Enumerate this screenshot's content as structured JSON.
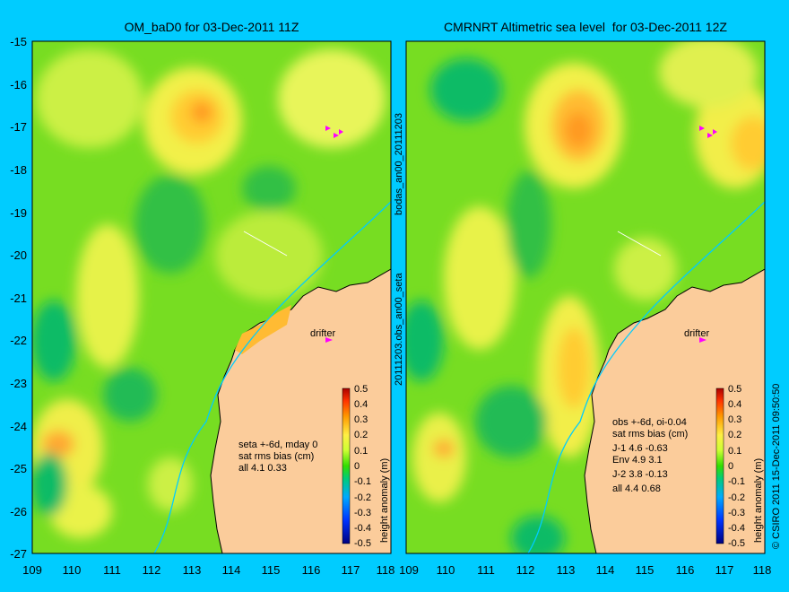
{
  "colors": {
    "background": "#00ccff",
    "land": "#fbcc9b",
    "drifter": "#ff00ff"
  },
  "left_panel": {
    "title": "OM_baD0 for 03-Dec-2011 11Z",
    "info_lines": [
      "seta +-6d, mday 0",
      "sat rms bias (cm)",
      "all 4.1 0.33"
    ],
    "drifter_label": "drifter"
  },
  "right_panel": {
    "title": "CMRNRT Altimetric sea level  for 03-Dec-2011 12Z",
    "info_lines": [
      "obs +-6d, oi-0.04",
      "sat rms bias (cm)",
      "J-1   4.6 -0.63",
      "Env   4.9 3.1",
      "J-2   3.8 -0.13",
      "all 4.4 0.68"
    ],
    "drifter_label": "drifter"
  },
  "axes": {
    "lat_labels": [
      "-15",
      "-16",
      "-17",
      "-18",
      "-19",
      "-20",
      "-21",
      "-22",
      "-23",
      "-24",
      "-25",
      "-26",
      "-27"
    ],
    "lon_labels": [
      "109",
      "110",
      "111",
      "112",
      "113",
      "114",
      "115",
      "116",
      "117",
      "118"
    ]
  },
  "colorbar": {
    "labels": [
      "0.5",
      "0.4",
      "0.3",
      "0.2",
      "0.1",
      "0",
      "-0.1",
      "-0.2",
      "-0.3",
      "-0.4",
      "-0.5"
    ],
    "title": "height anomaly (m)"
  },
  "side_labels": {
    "middle_top": "bodas_an00_20111203",
    "middle_bottom": "20111203.obs_an00_seta",
    "copyright": "© CSIRO 2011  15-Dec-2011 09:50:50"
  }
}
